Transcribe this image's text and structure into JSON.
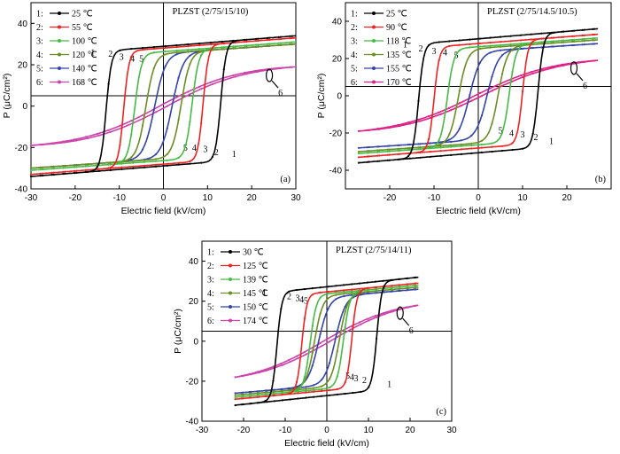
{
  "chart_data": [
    {
      "type": "line",
      "title": "PLZST (2/75/15/10)",
      "panel_label": "(a)",
      "xlabel": "Electric field (kV/cm)",
      "ylabel": "P (μC/cm²)",
      "xlim": [
        -30,
        30
      ],
      "ylim": [
        -40,
        50
      ],
      "xticks": [
        -30,
        -20,
        -10,
        0,
        10,
        20,
        30
      ],
      "yticks": [
        -40,
        -20,
        0,
        20,
        40
      ],
      "baseline": 5,
      "legend_position": "top-left",
      "series": [
        {
          "name": "1:",
          "temp": "25 ℃",
          "color": "#000000",
          "Emax": 30,
          "Ec": 13,
          "Pmax": 34,
          "Pr": 27,
          "w": 1.2,
          "label": "1"
        },
        {
          "name": "2:",
          "temp": "55 ℃",
          "color": "#ee2222",
          "Emax": 30,
          "Ec": 9,
          "Pmax": 33,
          "Pr": 23,
          "w": 1.2,
          "label": "2"
        },
        {
          "name": "3:",
          "temp": "100 ℃",
          "color": "#44bb44",
          "Emax": 30,
          "Ec": 6.5,
          "Pmax": 31,
          "Pr": 18,
          "w": 1.5,
          "label": "3"
        },
        {
          "name": "4:",
          "temp": "120 ℃",
          "color": "#6b8e23",
          "Emax": 30,
          "Ec": 4,
          "Pmax": 30,
          "Pr": 12,
          "w": 2,
          "label": "4"
        },
        {
          "name": "5:",
          "temp": "140 ℃",
          "color": "#3344aa",
          "Emax": 30,
          "Ec": 2,
          "Pmax": 30,
          "Pr": 3,
          "w": 2.5,
          "label": "5"
        },
        {
          "name": "6:",
          "temp": "168 ℃",
          "color": "#cc44aa",
          "Emax": 30,
          "Ec": 0.5,
          "Pmax": 19,
          "Pr": 1,
          "w": 25,
          "label": "6"
        }
      ]
    },
    {
      "type": "line",
      "title": "PLZST (2/75/14.5/10.5)",
      "panel_label": "(b)",
      "xlabel": "Electric field (kV/cm)",
      "ylabel": "P (μC/cm²)",
      "xlim": [
        -30,
        30
      ],
      "ylim": [
        -50,
        50
      ],
      "xticks": [
        -20,
        -10,
        0,
        10,
        20
      ],
      "yticks": [
        -40,
        -20,
        0,
        20,
        40
      ],
      "baseline": 5,
      "legend_position": "top-left",
      "series": [
        {
          "name": "1:",
          "temp": "25 ℃",
          "color": "#000000",
          "Emax": 27,
          "Ec": 13.5,
          "Pmax": 36,
          "Pr": 31,
          "w": 1.2,
          "label": "1"
        },
        {
          "name": "2:",
          "temp": "90 ℃",
          "color": "#ee2222",
          "Emax": 27,
          "Ec": 10,
          "Pmax": 33,
          "Pr": 25,
          "w": 1.2,
          "label": "2"
        },
        {
          "name": "3:",
          "temp": "118 ℃",
          "color": "#44bb44",
          "Emax": 27,
          "Ec": 7,
          "Pmax": 31,
          "Pr": 17,
          "w": 1.5,
          "label": "3"
        },
        {
          "name": "4:",
          "temp": "135 ℃",
          "color": "#6b8e23",
          "Emax": 27,
          "Ec": 4.5,
          "Pmax": 30,
          "Pr": 10,
          "w": 2,
          "label": "4"
        },
        {
          "name": "5:",
          "temp": "155 ℃",
          "color": "#3344aa",
          "Emax": 27,
          "Ec": 2,
          "Pmax": 28,
          "Pr": 3,
          "w": 2.5,
          "label": "5"
        },
        {
          "name": "6:",
          "temp": "170 ℃",
          "color": "#dd2288",
          "Emax": 27,
          "Ec": 0.5,
          "Pmax": 19,
          "Pr": 1,
          "w": 25,
          "label": "6"
        }
      ]
    },
    {
      "type": "line",
      "title": "PLZST (2/75/14/11)",
      "panel_label": "(c)",
      "xlabel": "Electric field (kV/cm)",
      "ylabel": "P (μC/cm²)",
      "xlim": [
        -30,
        30
      ],
      "ylim": [
        -40,
        50
      ],
      "xticks": [
        -30,
        -20,
        -10,
        0,
        10,
        20,
        30
      ],
      "yticks": [
        -40,
        -20,
        0,
        20,
        40
      ],
      "baseline": 5,
      "legend_position": "top-left",
      "series": [
        {
          "name": "1:",
          "temp": "30 ℃",
          "color": "#000000",
          "Emax": 22,
          "Ec": 12,
          "Pmax": 32,
          "Pr": 27,
          "w": 1.2,
          "label": "1"
        },
        {
          "name": "2:",
          "temp": "125 ℃",
          "color": "#ee2222",
          "Emax": 22,
          "Ec": 6,
          "Pmax": 29,
          "Pr": 19,
          "w": 1.2,
          "label": "2"
        },
        {
          "name": "3:",
          "temp": "139 ℃",
          "color": "#44bb44",
          "Emax": 22,
          "Ec": 4,
          "Pmax": 28,
          "Pr": 15,
          "w": 1.5,
          "label": "3"
        },
        {
          "name": "4:",
          "temp": "145 ℃",
          "color": "#6b8e23",
          "Emax": 22,
          "Ec": 3,
          "Pmax": 27,
          "Pr": 9,
          "w": 2,
          "label": "4"
        },
        {
          "name": "5:",
          "temp": "150 ℃",
          "color": "#3344aa",
          "Emax": 22,
          "Ec": 2,
          "Pmax": 26,
          "Pr": 3,
          "w": 2.5,
          "label": "5"
        },
        {
          "name": "6:",
          "temp": "174 ℃",
          "color": "#cc44aa",
          "Emax": 22,
          "Ec": 0.5,
          "Pmax": 18,
          "Pr": 1,
          "w": 25,
          "label": "6"
        }
      ]
    }
  ]
}
